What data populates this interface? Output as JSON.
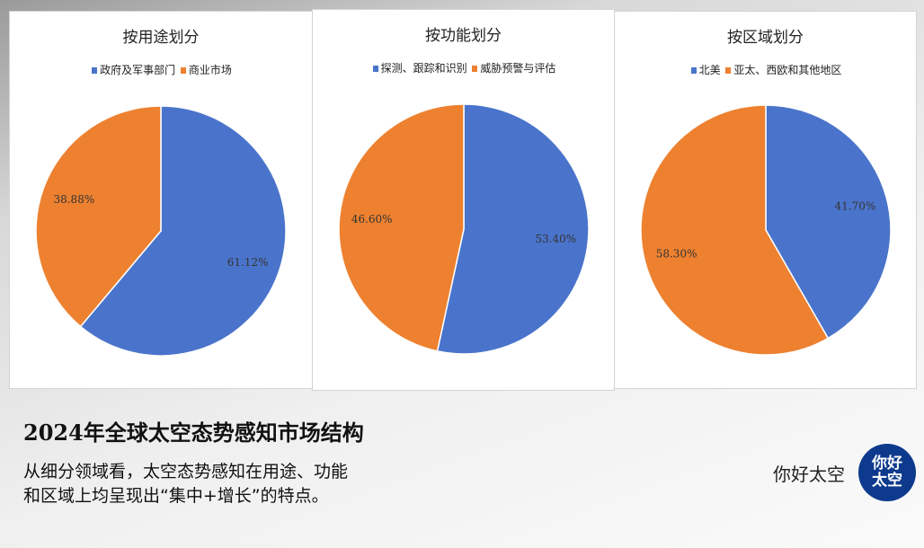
{
  "colors": {
    "blue": "#4a74cb",
    "orange": "#ed8130"
  },
  "chart_data": [
    {
      "type": "pie",
      "title": "按用途划分",
      "categories": [
        "政府及军事部门",
        "商业市场"
      ],
      "values": [
        61.12,
        38.88
      ],
      "labels": [
        "61.12%",
        "38.88%"
      ],
      "legend": "top"
    },
    {
      "type": "pie",
      "title": "按功能划分",
      "categories": [
        "探测、跟踪和识别",
        "威胁预警与评估"
      ],
      "values": [
        53.4,
        46.6
      ],
      "labels": [
        "53.40%",
        "46.60%"
      ],
      "legend": "top"
    },
    {
      "type": "pie",
      "title": "按区域划分",
      "categories": [
        "北美",
        "亚太、西欧和其他地区"
      ],
      "values": [
        41.7,
        58.3
      ],
      "labels": [
        "41.70%",
        "58.30%"
      ],
      "legend": "top"
    }
  ],
  "caption": {
    "title": "2024年全球太空态势感知市场结构",
    "line1": "从细分领域看，太空态势感知在用途、功能",
    "line2": "和区域上均呈现出“集中+增长”的特点。"
  },
  "brand": {
    "name": "你好太空",
    "logo_text": "你好太空"
  }
}
